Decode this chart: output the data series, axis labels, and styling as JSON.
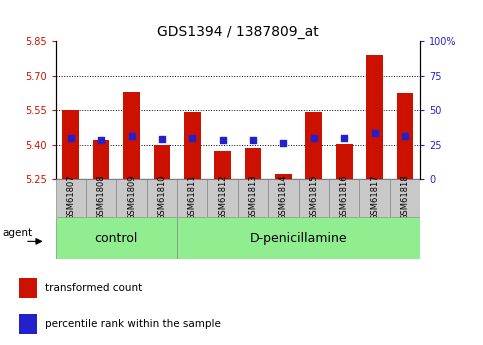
{
  "title": "GDS1394 / 1387809_at",
  "samples": [
    "GSM61807",
    "GSM61808",
    "GSM61809",
    "GSM61810",
    "GSM61811",
    "GSM61812",
    "GSM61813",
    "GSM61814",
    "GSM61815",
    "GSM61816",
    "GSM61817",
    "GSM61818"
  ],
  "bar_values": [
    5.55,
    5.42,
    5.63,
    5.4,
    5.545,
    5.375,
    5.385,
    5.272,
    5.545,
    5.405,
    5.79,
    5.625
  ],
  "percentile_values": [
    5.43,
    5.42,
    5.44,
    5.425,
    5.43,
    5.42,
    5.42,
    5.41,
    5.43,
    5.43,
    5.45,
    5.44
  ],
  "bar_base": 5.25,
  "ylim_left": [
    5.25,
    5.85
  ],
  "ylim_right": [
    0,
    100
  ],
  "yticks_left": [
    5.25,
    5.4,
    5.55,
    5.7,
    5.85
  ],
  "yticks_right": [
    0,
    25,
    50,
    75,
    100
  ],
  "ytick_labels_right": [
    "0",
    "25",
    "50",
    "75",
    "100%"
  ],
  "hlines": [
    5.4,
    5.55,
    5.7
  ],
  "bar_color": "#cc1100",
  "blue_color": "#2222cc",
  "bar_width": 0.55,
  "group_ranges": [
    [
      0,
      3,
      "control"
    ],
    [
      4,
      11,
      "D-penicillamine"
    ]
  ],
  "group_color": "#90ee90",
  "agent_label": "agent",
  "legend_items": [
    {
      "color": "#cc1100",
      "label": "transformed count"
    },
    {
      "color": "#2222cc",
      "label": "percentile rank within the sample"
    }
  ],
  "title_fontsize": 10,
  "axis_color_left": "#cc1100",
  "axis_color_right": "#2222cc",
  "tick_fontsize": 7,
  "sample_fontsize": 6,
  "group_fontsize": 9,
  "legend_fontsize": 7.5,
  "label_box_color": "#c8c8c8",
  "bg_color": "#ffffff"
}
